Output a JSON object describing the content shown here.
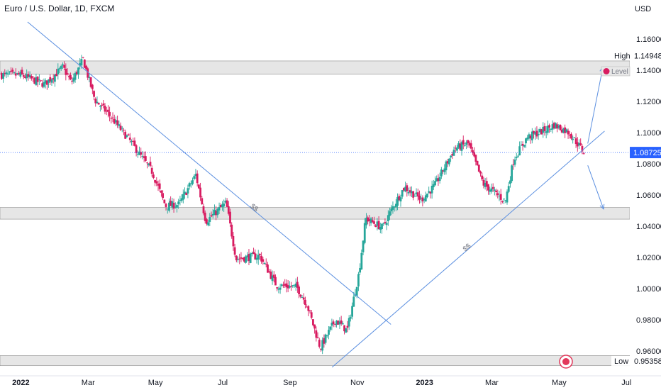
{
  "header": {
    "title": "Euro / U.S. Dollar, 1D, FXCM"
  },
  "colors": {
    "up": "#26a69a",
    "down": "#d81b60",
    "line": "#5b8fe0",
    "zone": "#e6e6e6",
    "price_tag": "#2962ff"
  },
  "chart_data": {
    "type": "candlestick",
    "title": "Euro / U.S. Dollar, 1D, FXCM",
    "currency_label": "USD",
    "y_ticks": [
      "1.16000",
      "1.14000",
      "1.12000",
      "1.10000",
      "1.08000",
      "1.06000",
      "1.04000",
      "1.02000",
      "1.00000",
      "0.98000",
      "0.96000"
    ],
    "ylim": [
      0.944,
      1.176
    ],
    "x_ticks": [
      "2022",
      "Mar",
      "May",
      "Jul",
      "Sep",
      "Nov",
      "2023",
      "Mar",
      "May",
      "Jul"
    ],
    "x_tick_months": [
      0,
      2,
      4,
      6,
      8,
      10,
      12,
      14,
      16,
      18
    ],
    "xlim_months": [
      -0.62,
      18.1
    ],
    "last_month": 16.75,
    "path_months": [
      0.0,
      0.7,
      1.25,
      1.5,
      1.85,
      2.2,
      2.6,
      3.2,
      3.9,
      4.3,
      4.7,
      5.2,
      5.5,
      6.1,
      6.4,
      7.1,
      7.6,
      8.2,
      8.5,
      8.9,
      9.35,
      9.7,
      10.05,
      10.25,
      10.75,
      11.05,
      11.4,
      11.9,
      12.3,
      12.9,
      13.3,
      13.75,
      14.0,
      14.4,
      14.65,
      15.05,
      15.5,
      15.85,
      16.3,
      16.75
    ],
    "path_closes": [
      1.137,
      1.131,
      1.142,
      1.132,
      1.147,
      1.121,
      1.112,
      1.096,
      1.075,
      1.053,
      1.054,
      1.073,
      1.043,
      1.055,
      1.019,
      1.021,
      1.002,
      1.001,
      0.99,
      0.962,
      0.98,
      0.973,
      1.01,
      1.045,
      1.039,
      1.052,
      1.065,
      1.057,
      1.066,
      1.09,
      1.093,
      1.067,
      1.063,
      1.056,
      1.083,
      1.097,
      1.101,
      1.105,
      1.1,
      1.0872
    ],
    "levels": {
      "high": "1.14948",
      "low": "0.95358",
      "last": "1.08725"
    },
    "labels": {
      "high": "High",
      "low": "Low",
      "level": "Level",
      "trendline": "$$"
    },
    "zones": [
      {
        "from": 1.1375,
        "to": 1.146
      },
      {
        "from": 1.0445,
        "to": 1.052
      },
      {
        "from": 0.9505,
        "to": 0.957
      }
    ],
    "lines": {
      "downtrend": {
        "from": [
          0.2,
          1.171
        ],
        "to": [
          11.0,
          0.977
        ]
      },
      "uptrend": {
        "from": [
          9.25,
          0.9495
        ],
        "to": [
          17.35,
          1.101
        ]
      },
      "arrow_up": {
        "from": [
          16.85,
          1.093
        ],
        "to": [
          17.3,
          1.142
        ]
      },
      "arrow_down": {
        "from": [
          16.85,
          1.079
        ],
        "to": [
          17.32,
          1.051
        ]
      }
    }
  }
}
